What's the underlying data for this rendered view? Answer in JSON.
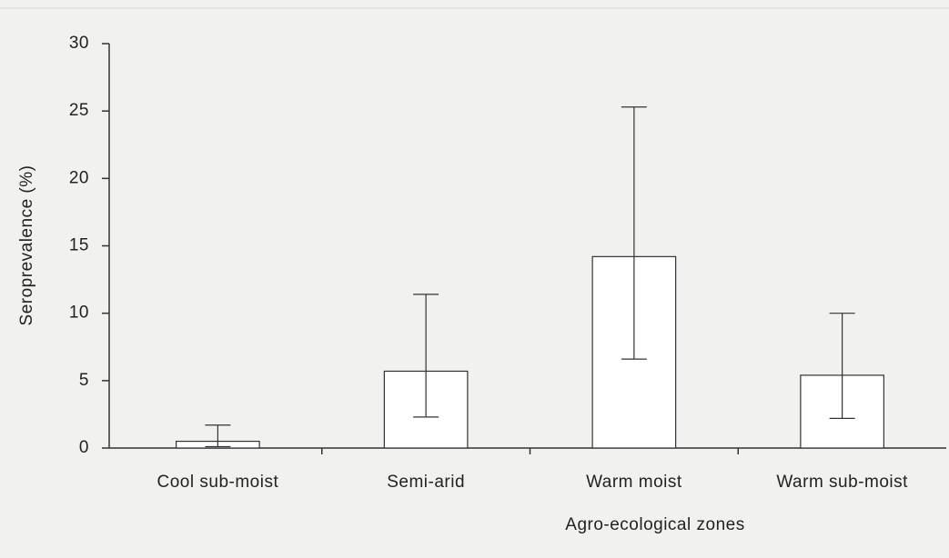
{
  "chart_data": {
    "type": "bar",
    "xlabel": "Agro-ecological zones",
    "ylabel": "Seroprevalence (%)",
    "categories": [
      "Cool sub-moist",
      "Semi-arid",
      "Warm moist",
      "Warm sub-moist"
    ],
    "values": [
      0.5,
      5.7,
      14.2,
      5.4
    ],
    "ci_lower": [
      0.1,
      2.3,
      6.6,
      2.2
    ],
    "ci_upper": [
      1.7,
      11.4,
      25.3,
      10.0
    ],
    "color": "#ffffff",
    "ylim": [
      0,
      30
    ],
    "yticks": [
      0,
      5,
      10,
      15,
      20,
      25,
      30
    ],
    "grid": false
  }
}
